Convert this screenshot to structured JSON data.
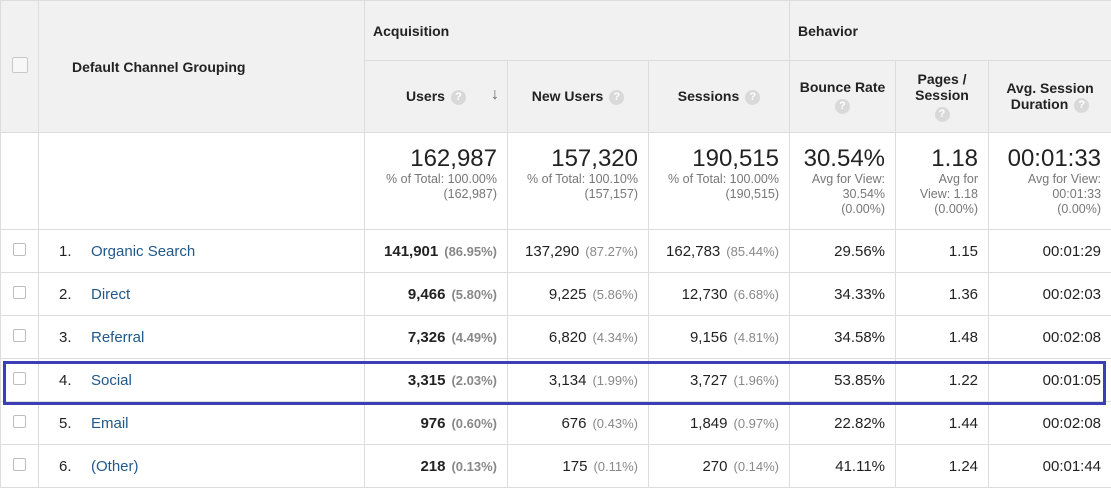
{
  "header": {
    "dimension_label": "Default Channel Grouping",
    "groups": {
      "acquisition": "Acquisition",
      "behavior": "Behavior"
    },
    "columns": {
      "users": "Users",
      "new_users": "New Users",
      "sessions": "Sessions",
      "bounce_rate": "Bounce Rate",
      "pages_session": "Pages / Session",
      "avg_duration": "Avg. Session Duration"
    },
    "help_glyph": "?",
    "sort_glyph": "↓"
  },
  "totals": {
    "users": {
      "value": "162,987",
      "note": "% of Total: 100.00% (162,987)"
    },
    "new_users": {
      "value": "157,320",
      "note": "% of Total: 100.10% (157,157)"
    },
    "sessions": {
      "value": "190,515",
      "note": "% of Total: 100.00% (190,515)"
    },
    "bounce_rate": {
      "value": "30.54%",
      "note": "Avg for View: 30.54% (0.00%)"
    },
    "pages_session": {
      "value": "1.18",
      "note": "Avg for View: 1.18 (0.00%)"
    },
    "avg_duration": {
      "value": "00:01:33",
      "note": "Avg for View: 00:01:33 (0.00%)"
    }
  },
  "rows": [
    {
      "index": "1.",
      "channel": "Organic Search",
      "users": "141,901",
      "users_pct": "(86.95%)",
      "new_users": "137,290",
      "new_users_pct": "(87.27%)",
      "sessions": "162,783",
      "sessions_pct": "(85.44%)",
      "bounce_rate": "29.56%",
      "pages_session": "1.15",
      "avg_duration": "00:01:29"
    },
    {
      "index": "2.",
      "channel": "Direct",
      "users": "9,466",
      "users_pct": "(5.80%)",
      "new_users": "9,225",
      "new_users_pct": "(5.86%)",
      "sessions": "12,730",
      "sessions_pct": "(6.68%)",
      "bounce_rate": "34.33%",
      "pages_session": "1.36",
      "avg_duration": "00:02:03"
    },
    {
      "index": "3.",
      "channel": "Referral",
      "users": "7,326",
      "users_pct": "(4.49%)",
      "new_users": "6,820",
      "new_users_pct": "(4.34%)",
      "sessions": "9,156",
      "sessions_pct": "(4.81%)",
      "bounce_rate": "34.58%",
      "pages_session": "1.48",
      "avg_duration": "00:02:08"
    },
    {
      "index": "4.",
      "channel": "Social",
      "users": "3,315",
      "users_pct": "(2.03%)",
      "new_users": "3,134",
      "new_users_pct": "(1.99%)",
      "sessions": "3,727",
      "sessions_pct": "(1.96%)",
      "bounce_rate": "53.85%",
      "pages_session": "1.22",
      "avg_duration": "00:01:05"
    },
    {
      "index": "5.",
      "channel": "Email",
      "users": "976",
      "users_pct": "(0.60%)",
      "new_users": "676",
      "new_users_pct": "(0.43%)",
      "sessions": "1,849",
      "sessions_pct": "(0.97%)",
      "bounce_rate": "22.82%",
      "pages_session": "1.44",
      "avg_duration": "00:02:08"
    },
    {
      "index": "6.",
      "channel": "(Other)",
      "users": "218",
      "users_pct": "(0.13%)",
      "new_users": "175",
      "new_users_pct": "(0.11%)",
      "sessions": "270",
      "sessions_pct": "(0.14%)",
      "bounce_rate": "41.11%",
      "pages_session": "1.24",
      "avg_duration": "00:01:44"
    }
  ],
  "colors": {
    "link": "#20598a",
    "highlight_border": "#3b3fb6",
    "header_bg": "#f1f1f1"
  }
}
